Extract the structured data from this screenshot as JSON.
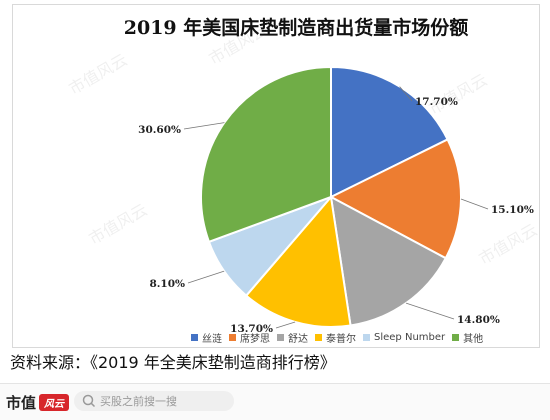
{
  "chart_data": {
    "type": "pie",
    "title": "2019 年美国床垫制造商出货量市场份额",
    "series": [
      {
        "name": "丝涟",
        "value": 17.7,
        "label": "17.70%",
        "color": "#4472C4"
      },
      {
        "name": "席梦思",
        "value": 15.1,
        "label": "15.10%",
        "color": "#ED7D31"
      },
      {
        "name": "舒达",
        "value": 14.8,
        "label": "14.80%",
        "color": "#A5A5A5"
      },
      {
        "name": "泰普尔",
        "value": 13.7,
        "label": "13.70%",
        "color": "#FFC000"
      },
      {
        "name": "Sleep Number",
        "value": 8.1,
        "label": "8.10%",
        "color": "#BDD7EE"
      },
      {
        "name": "其他",
        "value": 30.6,
        "label": "30.60%",
        "color": "#70AD47"
      }
    ],
    "legend_position": "bottom",
    "watermark": "市值风云"
  },
  "source_text": "资料来源：《2019 年全美床垫制造商排行榜》",
  "bottom_bar": {
    "brand": "市值",
    "brand_badge": "风云",
    "search_placeholder": "买股之前搜一搜"
  }
}
